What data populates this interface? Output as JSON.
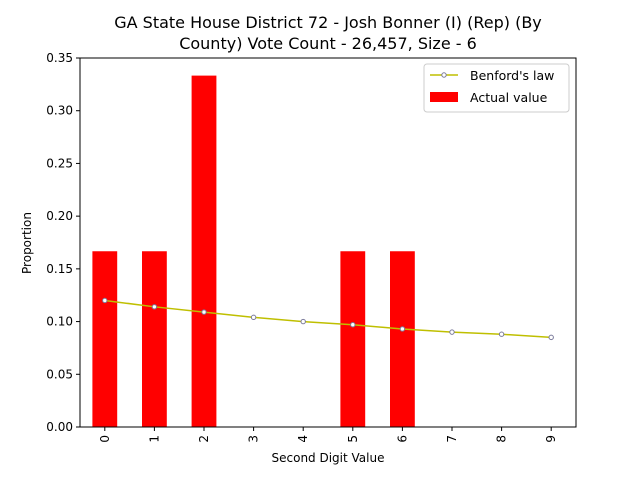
{
  "chart_data": {
    "type": "bar",
    "title_line1": "GA State House District 72 - Josh Bonner (I) (Rep) (By",
    "title_line2": "County) Vote Count - 26,457, Size - 6",
    "xlabel": "Second Digit Value",
    "ylabel": "Proportion",
    "categories": [
      "0",
      "1",
      "2",
      "3",
      "4",
      "5",
      "6",
      "7",
      "8",
      "9"
    ],
    "ylim": [
      0,
      0.35
    ],
    "yticks": [
      "0.00",
      "0.05",
      "0.10",
      "0.15",
      "0.20",
      "0.25",
      "0.30",
      "0.35"
    ],
    "grid": false,
    "legend_position": "top-right",
    "series": [
      {
        "name": "Benford's law",
        "kind": "line",
        "color": "#bfbf00",
        "values": [
          0.12,
          0.114,
          0.109,
          0.104,
          0.1,
          0.097,
          0.093,
          0.09,
          0.088,
          0.085
        ]
      },
      {
        "name": "Actual value",
        "kind": "bar",
        "color": "#ff0000",
        "values": [
          0.1667,
          0.1667,
          0.3333,
          0,
          0,
          0.1667,
          0.1667,
          0,
          0,
          0
        ]
      }
    ]
  }
}
